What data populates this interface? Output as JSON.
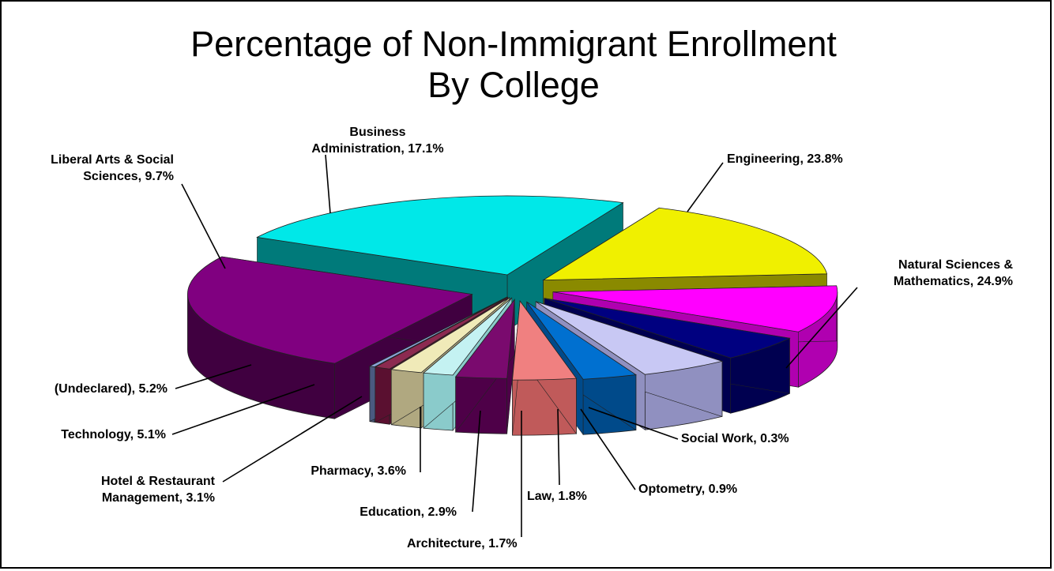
{
  "chart_data": {
    "type": "pie",
    "title_lines": [
      "Percentage of Non-Immigrant Enrollment",
      "By College"
    ],
    "label_format": "{name}, {value}%",
    "slices": [
      {
        "name": "Engineering",
        "label_lines": [
          "Engineering, 23.8%"
        ],
        "value": 23.8,
        "color": "#00E8E8",
        "side": "#007A7A"
      },
      {
        "name": "Natural Sciences & Mathematics",
        "label_lines": [
          "Natural Sciences &",
          "Mathematics, 24.9%"
        ],
        "value": 24.9,
        "color": "#800080",
        "side": "#400040"
      },
      {
        "name": "Social Work",
        "label_lines": [
          "Social Work, 0.3%"
        ],
        "value": 0.3,
        "color": "#8BA3D8",
        "side": "#4A5A80"
      },
      {
        "name": "Optometry",
        "label_lines": [
          "Optometry, 0.9%"
        ],
        "value": 0.9,
        "color": "#8C2A50",
        "side": "#5A1030"
      },
      {
        "name": "Law",
        "label_lines": [
          "Law, 1.8%"
        ],
        "value": 1.8,
        "color": "#F0EAB8",
        "side": "#B0A880"
      },
      {
        "name": "Architecture",
        "label_lines": [
          "Architecture, 1.7%"
        ],
        "value": 1.7,
        "color": "#C4F2F2",
        "side": "#8ACBCB"
      },
      {
        "name": "Education",
        "label_lines": [
          "Education, 2.9%"
        ],
        "value": 2.9,
        "color": "#7A0A6E",
        "side": "#4E0048"
      },
      {
        "name": "Pharmacy",
        "label_lines": [
          "Pharmacy, 3.6%"
        ],
        "value": 3.6,
        "color": "#F08080",
        "side": "#C05A5A"
      },
      {
        "name": "Hotel & Restaurant Management",
        "label_lines": [
          "Hotel & Restaurant",
          "Management, 3.1%"
        ],
        "value": 3.1,
        "color": "#0070D0",
        "side": "#004A8A"
      },
      {
        "name": "Technology",
        "label_lines": [
          "Technology, 5.1%"
        ],
        "value": 5.1,
        "color": "#C8C8F4",
        "side": "#9090C0"
      },
      {
        "name": "(Undeclared)",
        "label_lines": [
          "(Undeclared), 5.2%"
        ],
        "value": 5.2,
        "color": "#000080",
        "side": "#000050"
      },
      {
        "name": "Liberal Arts & Social Sciences",
        "label_lines": [
          "Liberal Arts & Social",
          "Sciences, 9.7%"
        ],
        "value": 9.7,
        "color": "#FF00FF",
        "side": "#B000B0"
      },
      {
        "name": "Business Administration",
        "label_lines": [
          "Business",
          "Administration, 17.1%"
        ],
        "value": 17.1,
        "color": "#F0F000",
        "side": "#8A8A00"
      }
    ]
  }
}
